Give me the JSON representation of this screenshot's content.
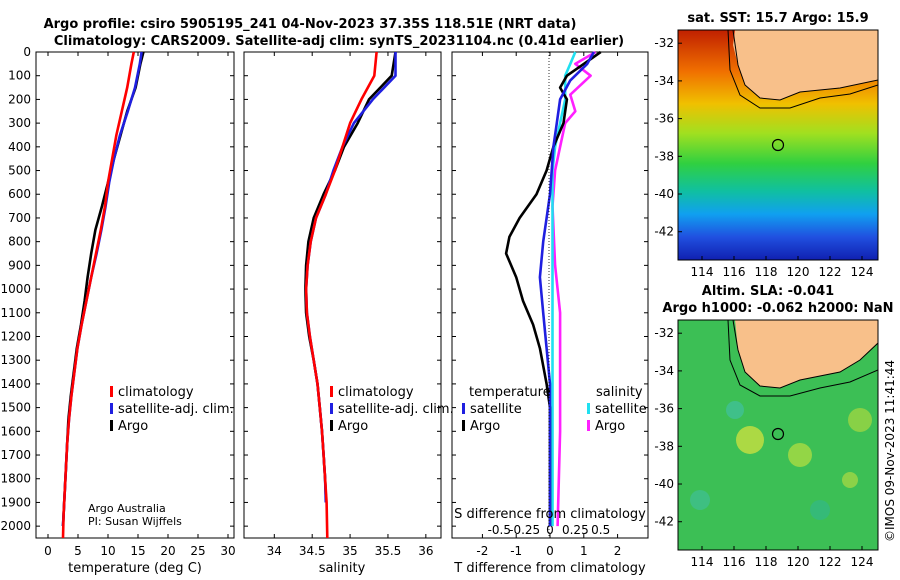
{
  "header": {
    "line1": "Argo profile: csiro 5905195_241 04-Nov-2023 37.35S 118.51E (NRT data)",
    "line2": "Climatology: CARS2009. Satellite-adj clim: synTS_20231104.nc (0.41d earlier)"
  },
  "credit": {
    "org": "Argo Australia",
    "pi": "PI: Susan Wijffels"
  },
  "stamp": "©IMOS 09-Nov-2023 11:41:44",
  "colors": {
    "climatology": "#ff0000",
    "satellite": "#1f1fe0",
    "argo": "#000000",
    "sat_salinity": "#20e0f0",
    "argo_salinity": "#ff20ff",
    "land": "#f8c08a"
  },
  "chart_data": [
    {
      "type": "line",
      "id": "temperature",
      "xlabel": "temperature (deg C)",
      "xlim": [
        -2,
        31
      ],
      "xticks": [
        0,
        5,
        10,
        15,
        20,
        25,
        30
      ],
      "ylim": [
        0,
        2050
      ],
      "yticks": [
        0,
        100,
        200,
        300,
        400,
        500,
        600,
        700,
        800,
        900,
        1000,
        1100,
        1200,
        1300,
        1400,
        1500,
        1600,
        1700,
        1800,
        1900,
        2000
      ],
      "legend": [
        "climatology",
        "satellite-adj. clim.",
        "Argo"
      ],
      "series": [
        {
          "name": "climatology",
          "color": "#ff0000",
          "points": [
            [
              14.3,
              0
            ],
            [
              13.9,
              50
            ],
            [
              13.2,
              150
            ],
            [
              12.3,
              250
            ],
            [
              11.4,
              350
            ],
            [
              10.7,
              450
            ],
            [
              10.0,
              550
            ],
            [
              9.5,
              650
            ],
            [
              8.8,
              750
            ],
            [
              8.0,
              850
            ],
            [
              7.2,
              950
            ],
            [
              6.4,
              1050
            ],
            [
              5.6,
              1150
            ],
            [
              4.9,
              1250
            ],
            [
              4.4,
              1350
            ],
            [
              3.9,
              1450
            ],
            [
              3.5,
              1550
            ],
            [
              3.2,
              1650
            ],
            [
              3.0,
              1750
            ],
            [
              2.8,
              1850
            ],
            [
              2.6,
              1950
            ],
            [
              2.5,
              2050
            ]
          ]
        },
        {
          "name": "satellite-adj. clim.",
          "color": "#1f1fe0",
          "points": [
            [
              15.6,
              0
            ],
            [
              15.3,
              50
            ],
            [
              14.5,
              150
            ],
            [
              13.3,
              250
            ],
            [
              12.0,
              350
            ],
            [
              11.0,
              450
            ],
            [
              10.2,
              550
            ],
            [
              9.6,
              650
            ],
            [
              8.9,
              750
            ],
            [
              8.1,
              850
            ],
            [
              7.2,
              950
            ],
            [
              6.4,
              1050
            ],
            [
              5.6,
              1150
            ],
            [
              4.9,
              1250
            ],
            [
              4.4,
              1350
            ],
            [
              3.9,
              1450
            ],
            [
              3.5,
              1550
            ],
            [
              3.2,
              1650
            ],
            [
              3.0,
              1750
            ],
            [
              2.8,
              1850
            ],
            [
              2.6,
              1950
            ],
            [
              2.5,
              2000
            ]
          ]
        },
        {
          "name": "Argo",
          "color": "#000000",
          "points": [
            [
              15.9,
              0
            ],
            [
              15.4,
              50
            ],
            [
              14.6,
              150
            ],
            [
              13.2,
              250
            ],
            [
              12.1,
              350
            ],
            [
              11.0,
              450
            ],
            [
              10.0,
              550
            ],
            [
              9.0,
              650
            ],
            [
              7.9,
              750
            ],
            [
              7.2,
              850
            ],
            [
              6.6,
              950
            ],
            [
              6.1,
              1050
            ],
            [
              5.5,
              1150
            ],
            [
              4.8,
              1250
            ],
            [
              4.3,
              1350
            ],
            [
              3.8,
              1450
            ],
            [
              3.4,
              1550
            ],
            [
              3.2,
              1650
            ],
            [
              3.0,
              1750
            ],
            [
              2.8,
              1850
            ],
            [
              2.6,
              1950
            ],
            [
              2.5,
              2000
            ]
          ]
        }
      ]
    },
    {
      "type": "line",
      "id": "salinity",
      "xlabel": "salinity",
      "xlim": [
        33.6,
        36.2
      ],
      "xticks": [
        34,
        34.5,
        35,
        35.5,
        36
      ],
      "ylim": [
        0,
        2050
      ],
      "legend": [
        "climatology",
        "satellite-adj. clim.",
        "Argo"
      ],
      "series": [
        {
          "name": "climatology",
          "color": "#ff0000",
          "points": [
            [
              35.35,
              0
            ],
            [
              35.32,
              100
            ],
            [
              35.15,
              200
            ],
            [
              35.0,
              300
            ],
            [
              34.9,
              400
            ],
            [
              34.8,
              500
            ],
            [
              34.68,
              600
            ],
            [
              34.55,
              700
            ],
            [
              34.48,
              800
            ],
            [
              34.44,
              900
            ],
            [
              34.42,
              1000
            ],
            [
              34.43,
              1100
            ],
            [
              34.47,
              1200
            ],
            [
              34.52,
              1300
            ],
            [
              34.57,
              1400
            ],
            [
              34.6,
              1500
            ],
            [
              34.63,
              1600
            ],
            [
              34.65,
              1700
            ],
            [
              34.67,
              1800
            ],
            [
              34.69,
              1900
            ],
            [
              34.7,
              2050
            ]
          ]
        },
        {
          "name": "satellite-adj. clim.",
          "color": "#1f1fe0",
          "points": [
            [
              35.6,
              0
            ],
            [
              35.6,
              100
            ],
            [
              35.3,
              200
            ],
            [
              35.05,
              300
            ],
            [
              34.9,
              400
            ],
            [
              34.78,
              500
            ],
            [
              34.68,
              600
            ],
            [
              34.55,
              700
            ],
            [
              34.48,
              800
            ],
            [
              34.44,
              900
            ],
            [
              34.42,
              1000
            ],
            [
              34.43,
              1100
            ],
            [
              34.47,
              1200
            ],
            [
              34.52,
              1300
            ],
            [
              34.57,
              1400
            ],
            [
              34.6,
              1500
            ],
            [
              34.63,
              1600
            ],
            [
              34.65,
              1700
            ],
            [
              34.67,
              1800
            ],
            [
              34.68,
              1900
            ]
          ]
        },
        {
          "name": "Argo",
          "color": "#000000",
          "points": [
            [
              35.6,
              0
            ],
            [
              35.55,
              100
            ],
            [
              35.25,
              200
            ],
            [
              35.1,
              300
            ],
            [
              34.92,
              400
            ],
            [
              34.8,
              500
            ],
            [
              34.65,
              600
            ],
            [
              34.52,
              700
            ],
            [
              34.45,
              800
            ],
            [
              34.42,
              900
            ],
            [
              34.41,
              1000
            ],
            [
              34.42,
              1100
            ],
            [
              34.46,
              1200
            ],
            [
              34.52,
              1300
            ],
            [
              34.57,
              1400
            ],
            [
              34.6,
              1500
            ],
            [
              34.63,
              1600
            ],
            [
              34.65,
              1700
            ],
            [
              34.67,
              1800
            ],
            [
              34.68,
              1870
            ]
          ]
        }
      ]
    },
    {
      "type": "line",
      "id": "difference",
      "xlabel": "T difference from climatology",
      "xlabel_top": "S difference from climatology",
      "xlim": [
        -2.9,
        2.9
      ],
      "xticks": [
        -2,
        -1,
        0,
        1,
        2
      ],
      "sticks": [
        "-0.5",
        "-0.25",
        "0",
        "0.25",
        "0.5"
      ],
      "ylim": [
        0,
        2050
      ],
      "legend_temperature": {
        "title": "temperature",
        "items": [
          "satellite",
          "Argo"
        ]
      },
      "legend_salinity": {
        "title": "salinity",
        "items": [
          "satellite",
          "Argo"
        ]
      },
      "series": [
        {
          "name": "T satellite",
          "color": "#1f1fe0",
          "points": [
            [
              1.3,
              0
            ],
            [
              1.1,
              50
            ],
            [
              0.6,
              120
            ],
            [
              0.3,
              200
            ],
            [
              0.2,
              300
            ],
            [
              0.1,
              400
            ],
            [
              0.05,
              500
            ],
            [
              0,
              600
            ],
            [
              -0.1,
              700
            ],
            [
              -0.2,
              800
            ],
            [
              -0.3,
              950
            ],
            [
              -0.2,
              1100
            ],
            [
              -0.1,
              1250
            ],
            [
              0,
              1400
            ],
            [
              0,
              2000
            ]
          ]
        },
        {
          "name": "T Argo",
          "color": "#000000",
          "points": [
            [
              1.5,
              0
            ],
            [
              1.0,
              50
            ],
            [
              0.5,
              100
            ],
            [
              0.3,
              150
            ],
            [
              0.5,
              200
            ],
            [
              0.4,
              300
            ],
            [
              0.1,
              400
            ],
            [
              -0.1,
              500
            ],
            [
              -0.4,
              600
            ],
            [
              -0.9,
              700
            ],
            [
              -1.2,
              780
            ],
            [
              -1.3,
              850
            ],
            [
              -1.0,
              950
            ],
            [
              -0.8,
              1050
            ],
            [
              -0.5,
              1150
            ],
            [
              -0.3,
              1250
            ],
            [
              -0.1,
              1400
            ],
            [
              0,
              1500
            ],
            [
              0,
              2000
            ]
          ]
        },
        {
          "name": "S satellite",
          "color": "#20e0f0",
          "points": [
            [
              0.5,
              0
            ],
            [
              0.4,
              50
            ],
            [
              0.3,
              100
            ],
            [
              0.3,
              200
            ],
            [
              0.2,
              300
            ],
            [
              0.1,
              400
            ],
            [
              0.05,
              500
            ],
            [
              0.05,
              700
            ],
            [
              0.05,
              1000
            ],
            [
              0.05,
              1400
            ],
            [
              0.05,
              2000
            ]
          ]
        },
        {
          "name": "S Argo",
          "color": "#ff20ff",
          "points": [
            [
              0.9,
              0
            ],
            [
              0.5,
              50
            ],
            [
              0.8,
              100
            ],
            [
              0.4,
              180
            ],
            [
              0.5,
              250
            ],
            [
              0.3,
              300
            ],
            [
              0.2,
              400
            ],
            [
              0.1,
              500
            ],
            [
              0.05,
              650
            ],
            [
              0.1,
              900
            ],
            [
              0.2,
              1100
            ],
            [
              0.2,
              1300
            ],
            [
              0.2,
              1500
            ],
            [
              0.2,
              1600
            ],
            [
              0.15,
              2000
            ]
          ]
        }
      ]
    },
    {
      "type": "heatmap",
      "id": "sst_map",
      "title": "sat. SST: 15.7 Argo: 15.9",
      "xticks": [
        "114",
        "116",
        "118",
        "120",
        "122",
        "124"
      ],
      "yticks": [
        "-32",
        "-34",
        "-36",
        "-38",
        "-40",
        "-42"
      ],
      "xlim": [
        112.5,
        125
      ],
      "ylim": [
        -43.5,
        -31.3
      ],
      "argo_position": [
        118.51,
        -37.35
      ]
    },
    {
      "type": "heatmap",
      "id": "sla_map",
      "title1": "Altim. SLA: -0.041",
      "title2": "Argo h1000: -0.062 h2000: NaN",
      "xticks": [
        "114",
        "116",
        "118",
        "120",
        "122",
        "124"
      ],
      "yticks": [
        "-32",
        "-34",
        "-36",
        "-38",
        "-40",
        "-42"
      ],
      "xlim": [
        112.5,
        125
      ],
      "ylim": [
        -43.5,
        -31.3
      ],
      "argo_position": [
        118.51,
        -37.35
      ]
    }
  ]
}
